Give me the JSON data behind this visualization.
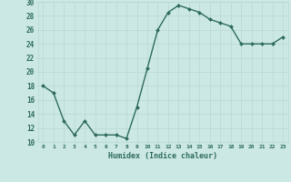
{
  "xlabel": "Humidex (Indice chaleur)",
  "x": [
    0,
    1,
    2,
    3,
    4,
    5,
    6,
    7,
    8,
    9,
    10,
    11,
    12,
    13,
    14,
    15,
    16,
    17,
    18,
    19,
    20,
    21,
    22,
    23
  ],
  "y": [
    18,
    17,
    13,
    11,
    13,
    11,
    11,
    11,
    10.5,
    15,
    20.5,
    26,
    28.5,
    29.5,
    29,
    28.5,
    27.5,
    27,
    26.5,
    24,
    24,
    24,
    24,
    25
  ],
  "line_color": "#2d6b5e",
  "marker": "D",
  "marker_size": 2.0,
  "line_width": 1.0,
  "bg_color": "#cce8e4",
  "grid_color": "#b8d8d4",
  "tick_color": "#2d6b5e",
  "label_color": "#2d6b5e",
  "ylim": [
    10,
    30
  ],
  "yticks": [
    10,
    12,
    14,
    16,
    18,
    20,
    22,
    24,
    26,
    28,
    30
  ],
  "xticks": [
    0,
    1,
    2,
    3,
    4,
    5,
    6,
    7,
    8,
    9,
    10,
    11,
    12,
    13,
    14,
    15,
    16,
    17,
    18,
    19,
    20,
    21,
    22,
    23
  ],
  "xtick_labels": [
    "0",
    "1",
    "2",
    "3",
    "4",
    "5",
    "6",
    "7",
    "8",
    "9",
    "10",
    "11",
    "12",
    "13",
    "14",
    "15",
    "16",
    "17",
    "18",
    "19",
    "20",
    "21",
    "22",
    "23"
  ]
}
